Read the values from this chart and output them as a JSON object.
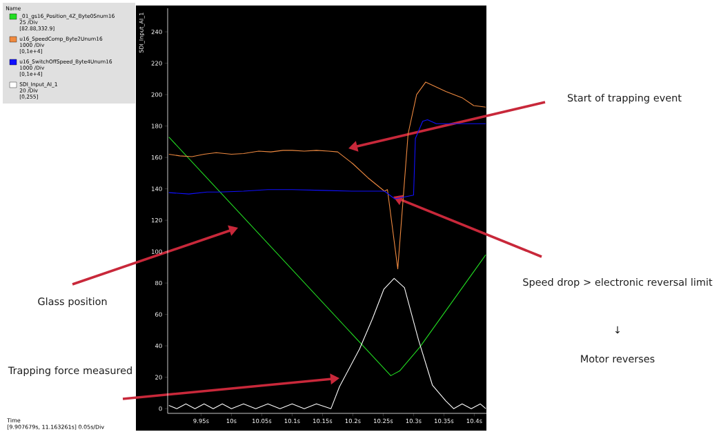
{
  "chart_data": {
    "type": "line",
    "ylabel": "SDI_Input_AI_1",
    "legend_title": "Name",
    "legend": "left",
    "xlim": [
      9.895,
      10.42
    ],
    "ylim": [
      -3,
      255
    ],
    "xticks": [
      {
        "value": 9.95,
        "label": "9.95s"
      },
      {
        "value": 10.0,
        "label": "10s"
      },
      {
        "value": 10.05,
        "label": "10.05s"
      },
      {
        "value": 10.1,
        "label": "10.1s"
      },
      {
        "value": 10.15,
        "label": "10.15s"
      },
      {
        "value": 10.2,
        "label": "10.2s"
      },
      {
        "value": 10.25,
        "label": "10.25s"
      },
      {
        "value": 10.3,
        "label": "10.3s"
      },
      {
        "value": 10.35,
        "label": "10.35s"
      },
      {
        "value": 10.4,
        "label": "10.4s"
      }
    ],
    "yticks": [
      0,
      20,
      40,
      60,
      80,
      100,
      120,
      140,
      160,
      180,
      200,
      220,
      240
    ],
    "series": [
      {
        "name": "_01_gs16_Position_4Z_Byte0Snum16",
        "color": "#22dd22",
        "x": [
          9.897,
          10.2625,
          10.277,
          10.31,
          10.419
        ],
        "values": [
          173,
          21,
          24,
          39,
          98
        ]
      },
      {
        "name": "u16_SpeedComp_Byte2Unum16",
        "color": "#f08a40",
        "x": [
          9.897,
          9.915,
          9.935,
          9.955,
          9.975,
          10.0,
          10.02,
          10.045,
          10.065,
          10.085,
          10.1,
          10.12,
          10.14,
          10.16,
          10.175,
          10.2,
          10.225,
          10.252,
          10.257,
          10.274,
          10.291,
          10.305,
          10.32,
          10.353,
          10.38,
          10.399,
          10.419
        ],
        "values": [
          162,
          161,
          160.5,
          162,
          163,
          162,
          162.5,
          164,
          163.5,
          164.5,
          164.5,
          164,
          164.5,
          164,
          163.5,
          156,
          147,
          138.5,
          139.5,
          89,
          175,
          200,
          208,
          202,
          198,
          193,
          192
        ]
      },
      {
        "name": "u16_SwitchOffSpeed_Byte4Unum16",
        "color": "#1010ff",
        "x": [
          9.897,
          9.93,
          9.96,
          9.98,
          10.02,
          10.06,
          10.1,
          10.15,
          10.2,
          10.252,
          10.269,
          10.3,
          10.303,
          10.315,
          10.323,
          10.3375,
          10.419
        ],
        "values": [
          137.6,
          136.7,
          138,
          138,
          138.5,
          139.5,
          139.5,
          139,
          138.5,
          138.5,
          133.6,
          136,
          172,
          183,
          184,
          181.5,
          181.5
        ]
      },
      {
        "name": "SDI_Input_AI_1",
        "color": "#ffffff",
        "x": [
          9.897,
          9.91,
          9.925,
          9.94,
          9.955,
          9.97,
          9.985,
          10.0,
          10.02,
          10.04,
          10.06,
          10.08,
          10.1,
          10.12,
          10.14,
          10.164,
          10.178,
          10.211,
          10.232,
          10.251,
          10.268,
          10.285,
          10.308,
          10.331,
          10.353,
          10.366,
          10.38,
          10.395,
          10.41,
          10.419
        ],
        "values": [
          2,
          0,
          3,
          0,
          3,
          0,
          3,
          0,
          3,
          0,
          3,
          0,
          3,
          0,
          3,
          0,
          14,
          38,
          57,
          76,
          83,
          77,
          44,
          15,
          5,
          0,
          3,
          0,
          3,
          0
        ]
      }
    ],
    "annotations": [
      "25 /Div",
      "[82.88,332.9]",
      "1000 /Div",
      "[0,1e+4]",
      "1000 /Div",
      "[0,1e+4]",
      "20 /Div",
      "[0,255]",
      "Start of trapping event",
      "Glass position",
      "Trapping force measured",
      "Speed drop > electronic reversal limit",
      "↓",
      "Motor reverses",
      "Time",
      "[9.907679s, 11.163261s] 0.05s/Div"
    ]
  }
}
